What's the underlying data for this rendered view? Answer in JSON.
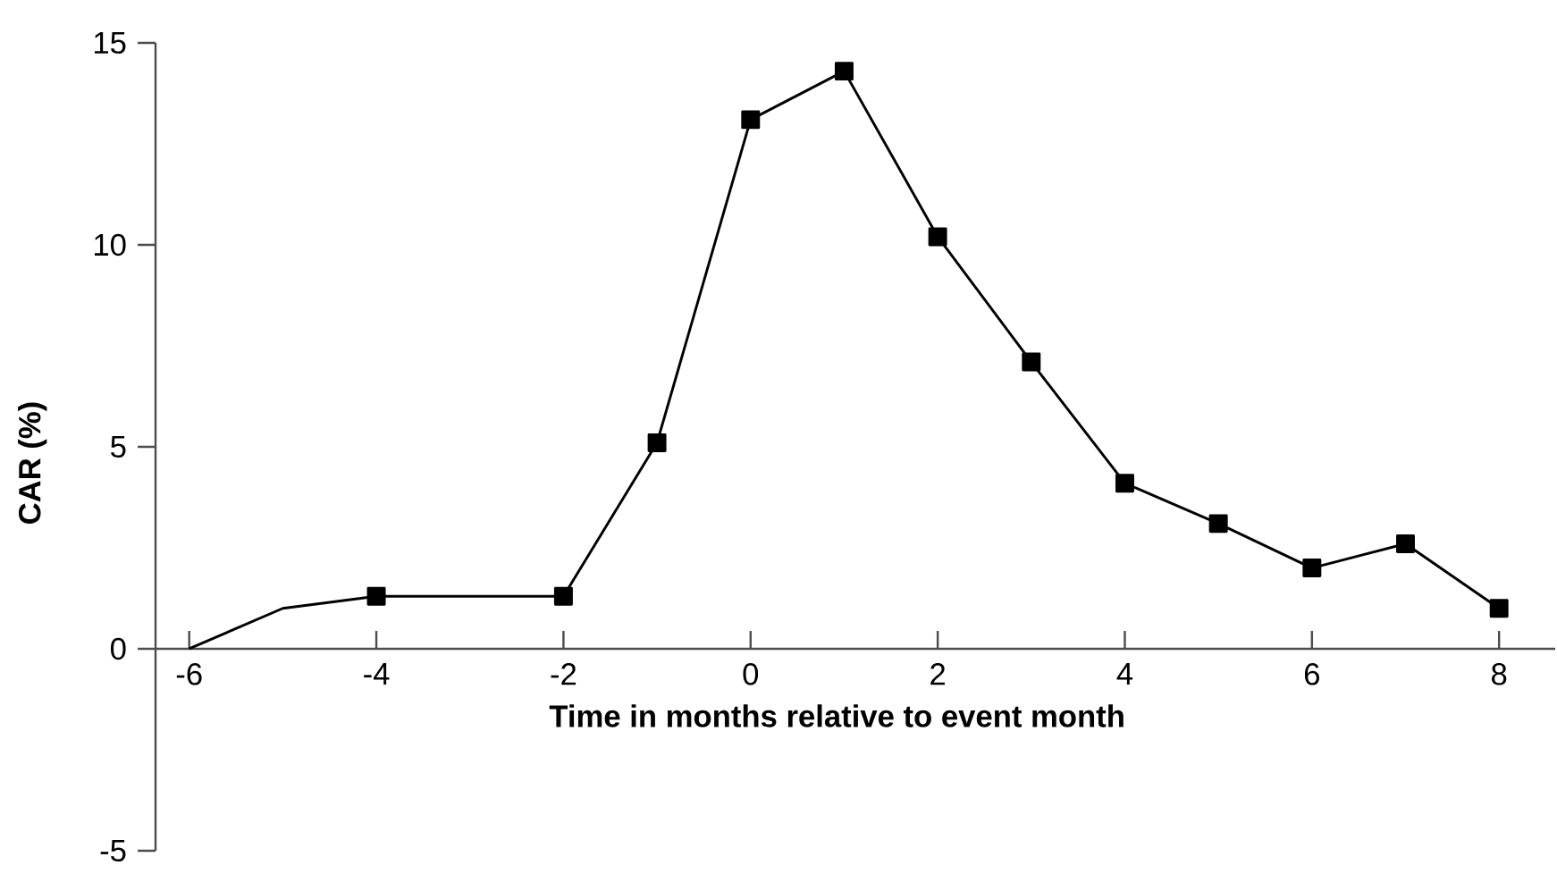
{
  "chart_data": {
    "type": "line",
    "xlabel": "Time in months relative to event month",
    "ylabel": "CAR (%)",
    "series": [
      {
        "color": "#000000",
        "marker": "none",
        "x": [
          -6,
          -5,
          -4
        ],
        "values": [
          0,
          1.0,
          1.3
        ]
      },
      {
        "color": "#000000",
        "marker": "square",
        "x": [
          -4,
          -2,
          -1,
          0,
          1,
          2,
          3,
          4,
          5,
          6,
          7,
          8
        ],
        "values": [
          1.3,
          1.3,
          5.1,
          13.1,
          14.3,
          10.2,
          7.1,
          4.1,
          3.1,
          2.0,
          2.6,
          1.0
        ]
      }
    ],
    "xlim": [
      -6.36,
      8.6
    ],
    "ylim": [
      -5,
      15
    ],
    "xticks": [
      -6,
      -4,
      -2,
      0,
      2,
      4,
      6,
      8
    ],
    "yticks": [
      -5,
      0,
      5,
      10,
      15
    ]
  }
}
